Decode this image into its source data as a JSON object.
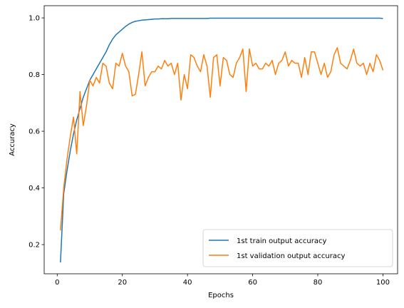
{
  "chart_data": {
    "type": "line",
    "title": "",
    "xlabel": "Epochs",
    "ylabel": "Accuracy",
    "xlim": [
      -4,
      104.5
    ],
    "ylim": [
      0.097,
      1.043
    ],
    "xticks": [
      0,
      20,
      40,
      60,
      80,
      100
    ],
    "xtick_labels": [
      "0",
      "20",
      "40",
      "60",
      "80",
      "100"
    ],
    "yticks": [
      0.2,
      0.4,
      0.6,
      0.8,
      1.0
    ],
    "ytick_labels": [
      "0.2",
      "0.4",
      "0.6",
      "0.8",
      "1.0"
    ],
    "grid": false,
    "legend_position": "lower right",
    "x": [
      1,
      2,
      3,
      4,
      5,
      6,
      7,
      8,
      9,
      10,
      11,
      12,
      13,
      14,
      15,
      16,
      17,
      18,
      19,
      20,
      21,
      22,
      23,
      24,
      25,
      26,
      27,
      28,
      29,
      30,
      31,
      32,
      33,
      34,
      35,
      36,
      37,
      38,
      39,
      40,
      41,
      42,
      43,
      44,
      45,
      46,
      47,
      48,
      49,
      50,
      51,
      52,
      53,
      54,
      55,
      56,
      57,
      58,
      59,
      60,
      61,
      62,
      63,
      64,
      65,
      66,
      67,
      68,
      69,
      70,
      71,
      72,
      73,
      74,
      75,
      76,
      77,
      78,
      79,
      80,
      81,
      82,
      83,
      84,
      85,
      86,
      87,
      88,
      89,
      90,
      91,
      92,
      93,
      94,
      95,
      96,
      97,
      98,
      99,
      100
    ],
    "series": [
      {
        "name": "1st train output accuracy",
        "color": "#1f77b4",
        "values": [
          0.137,
          0.38,
          0.46,
          0.53,
          0.59,
          0.64,
          0.68,
          0.72,
          0.75,
          0.78,
          0.8,
          0.82,
          0.84,
          0.86,
          0.88,
          0.905,
          0.925,
          0.94,
          0.95,
          0.96,
          0.97,
          0.978,
          0.984,
          0.988,
          0.99,
          0.992,
          0.993,
          0.994,
          0.995,
          0.996,
          0.996,
          0.997,
          0.997,
          0.997,
          0.998,
          0.998,
          0.998,
          0.998,
          0.998,
          0.998,
          0.998,
          0.998,
          0.998,
          0.998,
          0.998,
          0.998,
          0.999,
          0.999,
          0.999,
          0.999,
          0.999,
          0.999,
          0.999,
          0.999,
          0.999,
          0.999,
          0.999,
          0.999,
          0.999,
          0.999,
          0.999,
          0.999,
          0.999,
          0.999,
          0.999,
          0.999,
          0.999,
          0.999,
          0.999,
          0.999,
          0.999,
          0.999,
          0.999,
          0.999,
          0.999,
          0.999,
          0.999,
          0.999,
          0.999,
          0.999,
          0.999,
          0.999,
          0.999,
          0.999,
          0.999,
          0.999,
          0.999,
          0.999,
          0.999,
          0.999,
          0.999,
          0.999,
          0.999,
          0.999,
          0.999,
          0.999,
          0.999,
          0.999,
          0.999,
          0.998
        ]
      },
      {
        "name": "1st validation output accuracy",
        "color": "#ff7f0e",
        "values": [
          0.25,
          0.4,
          0.5,
          0.58,
          0.65,
          0.52,
          0.74,
          0.62,
          0.69,
          0.78,
          0.76,
          0.79,
          0.77,
          0.84,
          0.83,
          0.77,
          0.75,
          0.84,
          0.83,
          0.875,
          0.83,
          0.81,
          0.725,
          0.73,
          0.8,
          0.88,
          0.76,
          0.79,
          0.81,
          0.81,
          0.83,
          0.82,
          0.85,
          0.83,
          0.84,
          0.8,
          0.84,
          0.71,
          0.8,
          0.75,
          0.87,
          0.86,
          0.83,
          0.81,
          0.87,
          0.83,
          0.72,
          0.86,
          0.87,
          0.76,
          0.86,
          0.85,
          0.8,
          0.79,
          0.84,
          0.86,
          0.89,
          0.74,
          0.89,
          0.83,
          0.84,
          0.82,
          0.82,
          0.84,
          0.83,
          0.85,
          0.8,
          0.84,
          0.85,
          0.88,
          0.83,
          0.85,
          0.84,
          0.84,
          0.79,
          0.86,
          0.8,
          0.88,
          0.88,
          0.84,
          0.8,
          0.84,
          0.79,
          0.81,
          0.87,
          0.895,
          0.84,
          0.83,
          0.82,
          0.85,
          0.89,
          0.84,
          0.83,
          0.84,
          0.8,
          0.84,
          0.81,
          0.87,
          0.85,
          0.815
        ]
      }
    ]
  }
}
